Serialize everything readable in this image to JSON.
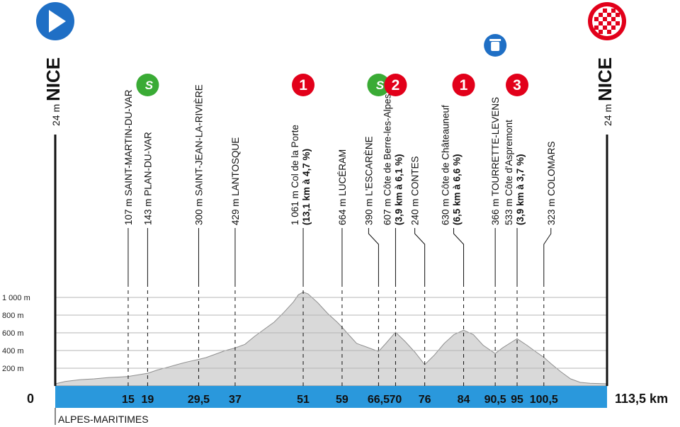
{
  "chart_data": {
    "type": "area",
    "title": "",
    "xlabel": "",
    "ylabel": "",
    "xlim": [
      0,
      113.5
    ],
    "ylim": [
      0,
      1100
    ],
    "grid": true,
    "y_ticks": [
      {
        "value": 200,
        "label": "200 m"
      },
      {
        "value": 400,
        "label": "400 m"
      },
      {
        "value": 600,
        "label": "600 m"
      },
      {
        "value": 800,
        "label": "800 m"
      },
      {
        "value": 1000,
        "label": "1 000 m"
      }
    ],
    "x_zero_label": "0",
    "x_end_label": "113,5 km",
    "region_label": "ALPES-MARITIMES",
    "start": {
      "label": "NICE",
      "altitude": "24 m",
      "icon": "start-play-icon",
      "color": "#1f6fc5"
    },
    "finish": {
      "label": "NICE",
      "altitude": "24 m",
      "icon": "finish-checkered-flag-icon",
      "color": "#e2001a"
    },
    "colors": {
      "band": "#2a98dc",
      "area": "#d9d9d9",
      "sprint": "#3aab35",
      "climb": "#e2001a",
      "feed": "#1f6fc5"
    },
    "profile": {
      "x": [
        0,
        2,
        5,
        8,
        11,
        13,
        15,
        17,
        19,
        21,
        23,
        25,
        27,
        29.5,
        31,
        33,
        35,
        37,
        39,
        41,
        43,
        45,
        47,
        49,
        50,
        51,
        52,
        54,
        56,
        58,
        59,
        60,
        61,
        62,
        64,
        66.5,
        68,
        70,
        72,
        74,
        76,
        78,
        80,
        82,
        84,
        86,
        88,
        90.5,
        92,
        94,
        95,
        97,
        99,
        100.5,
        102,
        104,
        106,
        108,
        110,
        113.5
      ],
      "y": [
        24,
        50,
        70,
        80,
        95,
        100,
        107,
        125,
        143,
        180,
        210,
        240,
        270,
        300,
        320,
        360,
        400,
        429,
        470,
        560,
        640,
        720,
        830,
        950,
        1030,
        1061,
        1040,
        940,
        820,
        720,
        664,
        600,
        540,
        480,
        440,
        390,
        480,
        607,
        500,
        380,
        240,
        350,
        480,
        580,
        630,
        580,
        460,
        366,
        430,
        500,
        533,
        460,
        380,
        323,
        250,
        160,
        80,
        40,
        30,
        24
      ]
    },
    "points": [
      {
        "km": 15,
        "km_label": "15",
        "altitude": "107 m",
        "name": "SAINT-MARTIN-DU-VAR",
        "detail": "",
        "leader": "straight",
        "badge": ""
      },
      {
        "km": 19,
        "km_label": "19",
        "altitude": "143 m",
        "name": "PLAN-DU-VAR",
        "detail": "",
        "leader": "straight",
        "badge": "sprint"
      },
      {
        "km": 29.5,
        "km_label": "29,5",
        "altitude": "300 m",
        "name": "SAINT-JEAN-LA-RIVIÈRE",
        "detail": "",
        "leader": "straight",
        "badge": ""
      },
      {
        "km": 37,
        "km_label": "37",
        "altitude": "429 m",
        "name": "LANTOSQUE",
        "detail": "",
        "leader": "straight",
        "badge": ""
      },
      {
        "km": 51,
        "km_label": "51",
        "altitude": "1 061 m",
        "name": "Col de la Porte",
        "detail": "(13,1 km à 4,7 %)",
        "leader": "straight",
        "badge": "1"
      },
      {
        "km": 59,
        "km_label": "59",
        "altitude": "664 m",
        "name": "LUCÉRAM",
        "detail": "",
        "leader": "straight",
        "badge": ""
      },
      {
        "km": 66.5,
        "km_label": "66,5",
        "altitude": "390 m",
        "name": "L'ESCARÈNE",
        "detail": "",
        "leader": "left",
        "badge": "sprint"
      },
      {
        "km": 70,
        "km_label": "70",
        "altitude": "607 m",
        "name": "Côte de Berre-les-Alpes",
        "detail": "(3,9 km à 6,1 %)",
        "leader": "straight",
        "badge": "2"
      },
      {
        "km": 76,
        "km_label": "76",
        "altitude": "240 m",
        "name": "CONTES",
        "detail": "",
        "leader": "left",
        "badge": ""
      },
      {
        "km": 84,
        "km_label": "84",
        "altitude": "630 m",
        "name": "Côte de Châteauneuf",
        "detail": "(6,5 km à 6,6 %)",
        "leader": "left",
        "badge": "1"
      },
      {
        "km": 90.5,
        "km_label": "90,5",
        "altitude": "366 m",
        "name": "TOURRETTE-LEVENS",
        "detail": "",
        "leader": "straight",
        "badge": "feed"
      },
      {
        "km": 95,
        "km_label": "95",
        "altitude": "533 m",
        "name": "Côte d'Aspremont",
        "detail": "(3,9 km à 3,7 %)",
        "leader": "straight",
        "badge": "3"
      },
      {
        "km": 100.5,
        "km_label": "100,5",
        "altitude": "323 m",
        "name": "COLOMARS",
        "detail": "",
        "leader": "right",
        "badge": ""
      }
    ]
  }
}
